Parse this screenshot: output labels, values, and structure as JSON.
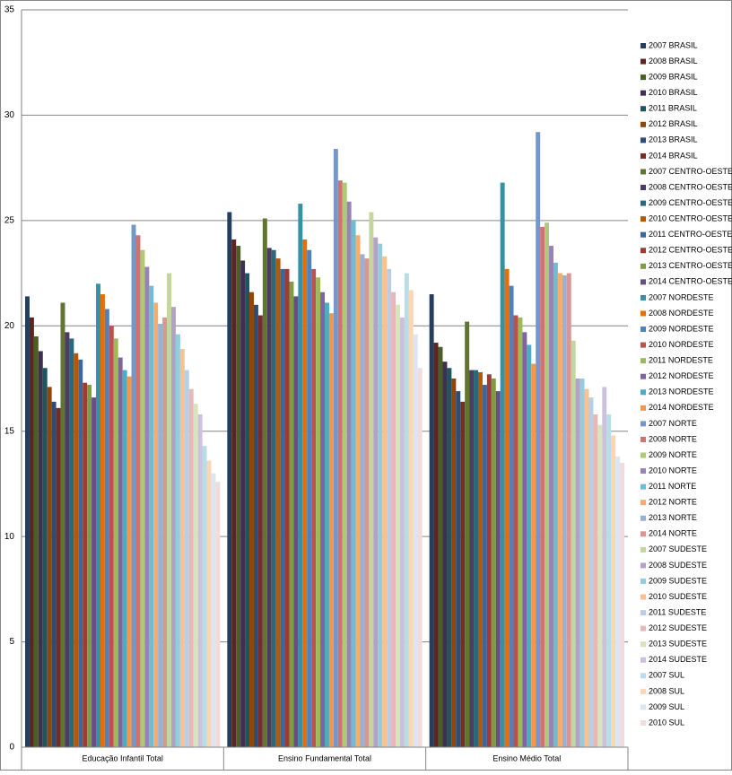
{
  "chart_data": {
    "type": "bar",
    "categories": [
      "Educação Infantil Total",
      "Ensino Fundamental Total",
      "Ensino Médio Total"
    ],
    "ylim": [
      0,
      35
    ],
    "yticks": [
      0,
      5,
      10,
      15,
      20,
      25,
      30,
      35
    ],
    "grid": true,
    "legend": "right",
    "series": [
      {
        "name": "2007 BRASIL",
        "color": "#233E5F",
        "values": [
          21.4,
          25.4,
          21.5
        ]
      },
      {
        "name": "2008 BRASIL",
        "color": "#5F2321",
        "values": [
          20.4,
          24.1,
          19.2
        ]
      },
      {
        "name": "2009 BRASIL",
        "color": "#4C5E27",
        "values": [
          19.5,
          23.8,
          19.0
        ]
      },
      {
        "name": "2010 BRASIL",
        "color": "#3E304E",
        "values": [
          18.8,
          23.1,
          18.3
        ]
      },
      {
        "name": "2011 BRASIL",
        "color": "#1F5563",
        "values": [
          18.0,
          22.5,
          18.0
        ]
      },
      {
        "name": "2012 BRASIL",
        "color": "#914506",
        "values": [
          17.1,
          21.6,
          17.5
        ]
      },
      {
        "name": "2013 BRASIL",
        "color": "#2C4D75",
        "values": [
          16.4,
          21.0,
          16.9
        ]
      },
      {
        "name": "2014 BRASIL",
        "color": "#772C2A",
        "values": [
          16.1,
          20.5,
          16.4
        ]
      },
      {
        "name": "2007 CENTRO-OESTE",
        "color": "#5F7530",
        "values": [
          21.1,
          25.1,
          20.2
        ]
      },
      {
        "name": "2008 CENTRO-OESTE",
        "color": "#4D3B62",
        "values": [
          19.7,
          23.7,
          17.9
        ]
      },
      {
        "name": "2009 CENTRO-OESTE",
        "color": "#276A7C",
        "values": [
          19.4,
          23.6,
          17.9
        ]
      },
      {
        "name": "2010 CENTRO-OESTE",
        "color": "#B65708",
        "values": [
          18.7,
          23.2,
          17.8
        ]
      },
      {
        "name": "2011 CENTRO-OESTE",
        "color": "#3A679C",
        "values": [
          18.4,
          22.7,
          17.2
        ]
      },
      {
        "name": "2012 CENTRO-OESTE",
        "color": "#9E3A38",
        "values": [
          17.3,
          22.7,
          17.7
        ]
      },
      {
        "name": "2013 CENTRO-OESTE",
        "color": "#7E9C40",
        "values": [
          17.2,
          22.1,
          17.5
        ]
      },
      {
        "name": "2014 CENTRO-OESTE",
        "color": "#664F83",
        "values": [
          16.6,
          21.4,
          16.9
        ]
      },
      {
        "name": "2007 NORDESTE",
        "color": "#3491A6",
        "values": [
          22.0,
          25.8,
          26.8
        ]
      },
      {
        "name": "2008 NORDESTE",
        "color": "#E26F0B",
        "values": [
          21.5,
          24.1,
          22.7
        ]
      },
      {
        "name": "2009 NORDESTE",
        "color": "#4F81BD",
        "values": [
          20.8,
          23.6,
          21.9
        ]
      },
      {
        "name": "2010 NORDESTE",
        "color": "#C0504D",
        "values": [
          20.0,
          22.7,
          20.5
        ]
      },
      {
        "name": "2011 NORDESTE",
        "color": "#9BBB59",
        "values": [
          19.4,
          22.3,
          20.4
        ]
      },
      {
        "name": "2012 NORDESTE",
        "color": "#8064A2",
        "values": [
          18.5,
          21.6,
          19.7
        ]
      },
      {
        "name": "2013 NORDESTE",
        "color": "#4BACC6",
        "values": [
          17.9,
          21.1,
          19.1
        ]
      },
      {
        "name": "2014 NORDESTE",
        "color": "#F79646",
        "values": [
          17.6,
          20.6,
          18.2
        ]
      },
      {
        "name": "2007 NORTE",
        "color": "#7297CA",
        "values": [
          24.8,
          28.4,
          29.2
        ]
      },
      {
        "name": "2008 NORTE",
        "color": "#CD7371",
        "values": [
          24.3,
          26.9,
          24.7
        ]
      },
      {
        "name": "2009 NORTE",
        "color": "#AFC97A",
        "values": [
          23.6,
          26.8,
          24.9
        ]
      },
      {
        "name": "2010 NORTE",
        "color": "#9983B5",
        "values": [
          22.8,
          25.9,
          23.8
        ]
      },
      {
        "name": "2011 NORTE",
        "color": "#6FBDD1",
        "values": [
          21.9,
          25.0,
          23.0
        ]
      },
      {
        "name": "2012 NORTE",
        "color": "#F9AB6B",
        "values": [
          21.1,
          24.3,
          22.5
        ]
      },
      {
        "name": "2013 NORTE",
        "color": "#95B3D7",
        "values": [
          20.1,
          23.4,
          22.4
        ]
      },
      {
        "name": "2014 NORTE",
        "color": "#D99694",
        "values": [
          20.4,
          23.2,
          22.5
        ]
      },
      {
        "name": "2007 SUDESTE",
        "color": "#C3D69B",
        "values": [
          22.5,
          25.4,
          19.3
        ]
      },
      {
        "name": "2008 SUDESTE",
        "color": "#B2A2C7",
        "values": [
          20.9,
          24.2,
          17.5
        ]
      },
      {
        "name": "2009 SUDESTE",
        "color": "#93CDDD",
        "values": [
          19.6,
          23.9,
          17.5
        ]
      },
      {
        "name": "2010 SUDESTE",
        "color": "#FAC090",
        "values": [
          18.9,
          23.3,
          17.0
        ]
      },
      {
        "name": "2011 SUDESTE",
        "color": "#B9CDE5",
        "values": [
          17.9,
          22.7,
          16.6
        ]
      },
      {
        "name": "2012 SUDESTE",
        "color": "#E6B9B8",
        "values": [
          17.0,
          21.6,
          15.8
        ]
      },
      {
        "name": "2013 SUDESTE",
        "color": "#D7E4BD",
        "values": [
          16.3,
          21.0,
          15.3
        ]
      },
      {
        "name": "2014 SUDESTE",
        "color": "#CCC1DA",
        "values": [
          15.8,
          20.4,
          17.1
        ]
      },
      {
        "name": "2007 SUL",
        "color": "#B7DEE8",
        "values": [
          14.3,
          22.5,
          15.8
        ]
      },
      {
        "name": "2008 SUL",
        "color": "#FCD5B5",
        "values": [
          13.6,
          21.7,
          14.8
        ]
      },
      {
        "name": "2009 SUL",
        "color": "#DCE6F2",
        "values": [
          13.0,
          19.6,
          13.8
        ]
      },
      {
        "name": "2010 SUL",
        "color": "#F2DCDB",
        "values": [
          12.6,
          18.0,
          13.5
        ]
      }
    ]
  }
}
